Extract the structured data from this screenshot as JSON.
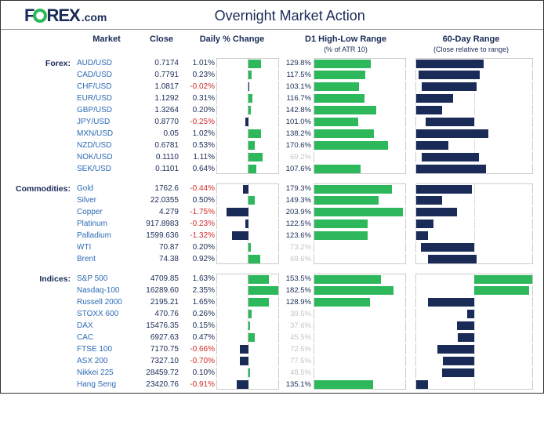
{
  "header": {
    "logo_text_1": "F",
    "logo_text_2": "REX",
    "logo_dotcom": ".com",
    "title": "Overnight Market Action"
  },
  "columns": {
    "market": "Market",
    "close": "Close",
    "daily": "Daily % Change",
    "d1": "D1 High-Low Range",
    "d1_sub": "(% of ATR 10)",
    "r60": "60-Day Range",
    "r60_sub": "(Close relative to range)"
  },
  "colors": {
    "green": "#2eb85c",
    "navy": "#1a2b57",
    "red": "#d12b2b",
    "gray_text": "#c5c5c5",
    "navy_text": "#1a2b57"
  },
  "scales": {
    "daily_max_abs": 2.5,
    "d1_max": 210,
    "r60_center": 0.5
  },
  "sections": [
    {
      "category": "Forex:",
      "rows": [
        {
          "name": "AUD/USD",
          "close": "0.7174",
          "pct": 1.01,
          "d1": 129.8,
          "d1_muted": false,
          "r60_low": 0.0,
          "r60_high": 0.58,
          "r60_color": "navy"
        },
        {
          "name": "CAD/USD",
          "close": "0.7791",
          "pct": 0.23,
          "d1": 117.5,
          "d1_muted": false,
          "r60_low": 0.02,
          "r60_high": 0.55,
          "r60_color": "navy"
        },
        {
          "name": "CHF/USD",
          "close": "1.0817",
          "pct": -0.02,
          "d1": 103.1,
          "d1_muted": false,
          "r60_low": 0.05,
          "r60_high": 0.52,
          "r60_color": "navy"
        },
        {
          "name": "EUR/USD",
          "close": "1.1292",
          "pct": 0.31,
          "d1": 116.7,
          "d1_muted": false,
          "r60_low": 0.0,
          "r60_high": 0.32,
          "r60_color": "navy"
        },
        {
          "name": "GBP/USD",
          "close": "1.3264",
          "pct": 0.2,
          "d1": 142.8,
          "d1_muted": false,
          "r60_low": 0.0,
          "r60_high": 0.22,
          "r60_color": "navy"
        },
        {
          "name": "JPY/USD",
          "close": "0.8770",
          "pct": -0.25,
          "d1": 101.0,
          "d1_muted": false,
          "r60_low": 0.08,
          "r60_high": 0.5,
          "r60_color": "navy"
        },
        {
          "name": "MXN/USD",
          "close": "0.05",
          "pct": 1.02,
          "d1": 138.2,
          "d1_muted": false,
          "r60_low": 0.0,
          "r60_high": 0.62,
          "r60_color": "navy"
        },
        {
          "name": "NZD/USD",
          "close": "0.6781",
          "pct": 0.53,
          "d1": 170.6,
          "d1_muted": false,
          "r60_low": 0.0,
          "r60_high": 0.28,
          "r60_color": "navy"
        },
        {
          "name": "NOK/USD",
          "close": "0.1110",
          "pct": 1.11,
          "d1": 69.2,
          "d1_muted": true,
          "r60_low": 0.05,
          "r60_high": 0.54,
          "r60_color": "navy"
        },
        {
          "name": "SEK/USD",
          "close": "0.1101",
          "pct": 0.64,
          "d1": 107.6,
          "d1_muted": false,
          "r60_low": 0.0,
          "r60_high": 0.6,
          "r60_color": "navy"
        }
      ]
    },
    {
      "category": "Commodities:",
      "rows": [
        {
          "name": "Gold",
          "close": "1762.6",
          "pct": -0.44,
          "d1": 179.3,
          "d1_muted": false,
          "r60_low": 0.0,
          "r60_high": 0.48,
          "r60_color": "navy"
        },
        {
          "name": "Silver",
          "close": "22.0355",
          "pct": 0.5,
          "d1": 149.3,
          "d1_muted": false,
          "r60_low": 0.0,
          "r60_high": 0.22,
          "r60_color": "navy"
        },
        {
          "name": "Copper",
          "close": "4.279",
          "pct": -1.75,
          "d1": 203.9,
          "d1_muted": false,
          "r60_low": 0.0,
          "r60_high": 0.35,
          "r60_color": "navy"
        },
        {
          "name": "Platinum",
          "close": "917.8983",
          "pct": -0.23,
          "d1": 122.5,
          "d1_muted": false,
          "r60_low": 0.0,
          "r60_high": 0.15,
          "r60_color": "navy"
        },
        {
          "name": "Palladium",
          "close": "1599.636",
          "pct": -1.32,
          "d1": 123.6,
          "d1_muted": false,
          "r60_low": 0.0,
          "r60_high": 0.1,
          "r60_color": "navy"
        },
        {
          "name": "WTI",
          "close": "70.87",
          "pct": 0.2,
          "d1": 73.2,
          "d1_muted": true,
          "r60_low": 0.04,
          "r60_high": 0.5,
          "r60_color": "navy"
        },
        {
          "name": "Brent",
          "close": "74.38",
          "pct": 0.92,
          "d1": 69.6,
          "d1_muted": true,
          "r60_low": 0.1,
          "r60_high": 0.52,
          "r60_color": "navy"
        }
      ]
    },
    {
      "category": "Indices:",
      "rows": [
        {
          "name": "S&P 500",
          "close": "4709.85",
          "pct": 1.63,
          "d1": 153.5,
          "d1_muted": false,
          "r60_low": 0.5,
          "r60_high": 1.0,
          "r60_color": "green"
        },
        {
          "name": "Nasdaq-100",
          "close": "16289.60",
          "pct": 2.35,
          "d1": 182.5,
          "d1_muted": false,
          "r60_low": 0.5,
          "r60_high": 0.97,
          "r60_color": "green"
        },
        {
          "name": "Russell 2000",
          "close": "2195.21",
          "pct": 1.65,
          "d1": 128.9,
          "d1_muted": false,
          "r60_low": 0.1,
          "r60_high": 0.5,
          "r60_color": "navy"
        },
        {
          "name": "STOXX 600",
          "close": "470.76",
          "pct": 0.26,
          "d1": 39.5,
          "d1_muted": true,
          "r60_low": 0.44,
          "r60_high": 0.5,
          "r60_color": "navy"
        },
        {
          "name": "DAX",
          "close": "15476.35",
          "pct": 0.15,
          "d1": 37.6,
          "d1_muted": true,
          "r60_low": 0.35,
          "r60_high": 0.5,
          "r60_color": "navy"
        },
        {
          "name": "CAC",
          "close": "6927.63",
          "pct": 0.47,
          "d1": 45.5,
          "d1_muted": true,
          "r60_low": 0.36,
          "r60_high": 0.5,
          "r60_color": "navy"
        },
        {
          "name": "FTSE 100",
          "close": "7170.75",
          "pct": -0.66,
          "d1": 72.5,
          "d1_muted": true,
          "r60_low": 0.18,
          "r60_high": 0.5,
          "r60_color": "navy"
        },
        {
          "name": "ASX 200",
          "close": "7327.10",
          "pct": -0.7,
          "d1": 77.5,
          "d1_muted": true,
          "r60_low": 0.23,
          "r60_high": 0.5,
          "r60_color": "navy"
        },
        {
          "name": "Nikkei 225",
          "close": "28459.72",
          "pct": 0.1,
          "d1": 48.5,
          "d1_muted": true,
          "r60_low": 0.22,
          "r60_high": 0.5,
          "r60_color": "navy"
        },
        {
          "name": "Hang Seng",
          "close": "23420.76",
          "pct": -0.91,
          "d1": 135.1,
          "d1_muted": false,
          "r60_low": 0.0,
          "r60_high": 0.1,
          "r60_color": "navy"
        }
      ]
    }
  ]
}
